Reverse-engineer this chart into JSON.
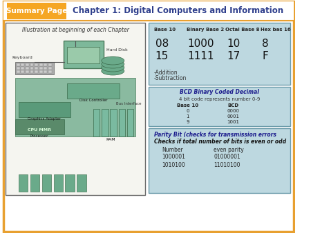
{
  "title": "Chapter 1: Digital Computers and Information",
  "summary_label": "Summary Page",
  "summary_bg": "#F5A623",
  "summary_text_color": "#FFFFFF",
  "title_color": "#2E3E8C",
  "outer_border_color": "#E8A030",
  "bg_color": "#FFFFFF",
  "left_panel_label": "Illustration at beginning of each Chapter",
  "left_panel_border": "#6B6B6B",
  "right_panel_bg": "#BDD8E0",
  "right_panel_border": "#6B9BAA",
  "table_headers": [
    "Base 10",
    "Binary Base 2",
    "Octal Base 8",
    "Hex bas 16"
  ],
  "table_rows": [
    [
      "08",
      "1000",
      "10",
      "8"
    ],
    [
      "15",
      "1111",
      "17",
      "F"
    ]
  ],
  "table_notes": [
    "-Addition",
    "-Subtraction"
  ],
  "bcd_title": "BCD Binary Coded Decimal",
  "bcd_subtitle": "4 bit code represents number 0-9",
  "bcd_headers": [
    "Base 10",
    "BCD"
  ],
  "bcd_rows": [
    [
      "0",
      "0000"
    ],
    [
      "1",
      "0001"
    ],
    [
      "9",
      "1001"
    ]
  ],
  "parity_title": "Parity Bit (checks for transmission errors",
  "parity_subtitle": "Checks if total number of bits is even or odd",
  "parity_headers": [
    "Number",
    "even parity"
  ],
  "parity_rows": [
    [
      "1000001",
      "01000001"
    ],
    [
      "1010100",
      "11010100"
    ]
  ]
}
